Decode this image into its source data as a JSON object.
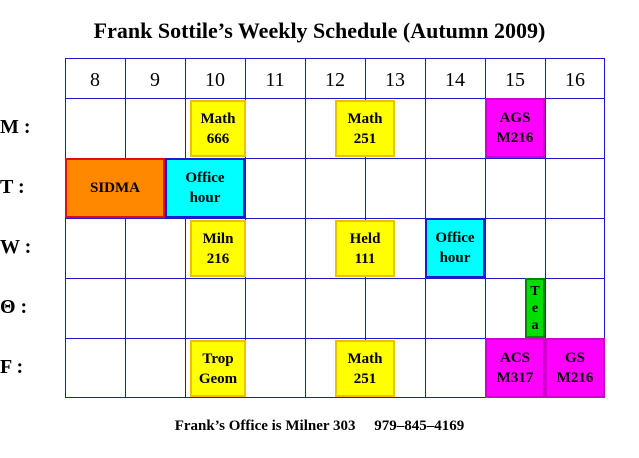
{
  "title": "Frank Sottile’s Weekly Schedule (Autumn 2009)",
  "hours": [
    "8",
    "9",
    "10",
    "11",
    "12",
    "13",
    "14",
    "15",
    "16"
  ],
  "days": [
    "M :",
    "T :",
    "W :",
    "Θ :",
    "F :"
  ],
  "events": {
    "m_math666": [
      "Math",
      "666"
    ],
    "m_math251": [
      "Math",
      "251"
    ],
    "m_ags": [
      "AGS",
      "M216"
    ],
    "t_sidma": [
      "SIDMA"
    ],
    "t_office": [
      "Office",
      "hour"
    ],
    "w_miln": [
      "Miln",
      "216"
    ],
    "w_held": [
      "Held",
      "111"
    ],
    "w_office": [
      "Office",
      "hour"
    ],
    "th_tea": [
      "T",
      "e",
      "a"
    ],
    "f_trop": [
      "Trop",
      "Geom"
    ],
    "f_math251": [
      "Math",
      "251"
    ],
    "f_acs": [
      "ACS",
      "M317"
    ],
    "f_gs": [
      "GS",
      "M216"
    ]
  },
  "colors": {
    "grid": "#1a1ad0",
    "math_yellow": "#ffff00",
    "seminar_magenta": "#ff00ff",
    "office_cyan": "#00ffff",
    "sidma_orange": "#ff8800",
    "tea_green": "#00dd00"
  },
  "footer": "Frank’s Office is Milner 303     979–845–4169"
}
